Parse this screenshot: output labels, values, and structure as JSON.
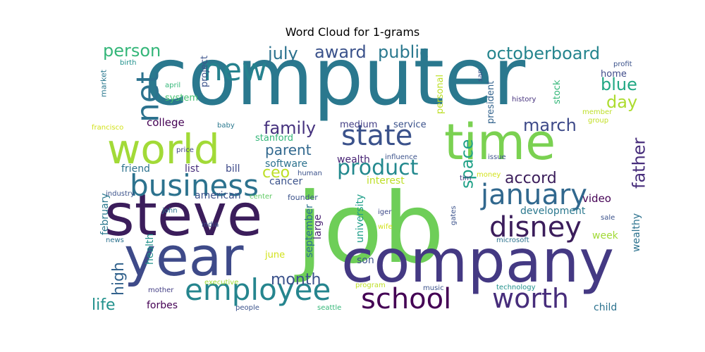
{
  "chart_data": {
    "type": "wordcloud",
    "title": "Word Cloud for 1-grams",
    "colormap": "viridis",
    "words": [
      {
        "text": "computer",
        "weight": 100
      },
      {
        "text": "job",
        "weight": 98
      },
      {
        "text": "company",
        "weight": 72
      },
      {
        "text": "steve",
        "weight": 70
      },
      {
        "text": "year",
        "weight": 62
      },
      {
        "text": "time",
        "weight": 58
      },
      {
        "text": "world",
        "weight": 48
      },
      {
        "text": "business",
        "weight": 34
      },
      {
        "text": "employee",
        "weight": 34
      },
      {
        "text": "state",
        "weight": 32
      },
      {
        "text": "january",
        "weight": 30
      },
      {
        "text": "disney",
        "weight": 30
      },
      {
        "text": "new",
        "weight": 30
      },
      {
        "text": "net",
        "weight": 30
      },
      {
        "text": "school",
        "weight": 28
      },
      {
        "text": "worth",
        "weight": 28
      },
      {
        "text": "product",
        "weight": 22
      },
      {
        "text": "award",
        "weight": 20
      },
      {
        "text": "public",
        "weight": 20
      },
      {
        "text": "octoberboard",
        "weight": 20
      },
      {
        "text": "person",
        "weight": 20
      },
      {
        "text": "july",
        "weight": 20
      },
      {
        "text": "blue",
        "weight": 20
      },
      {
        "text": "day",
        "weight": 20
      },
      {
        "text": "family",
        "weight": 20
      },
      {
        "text": "march",
        "weight": 20
      },
      {
        "text": "accord",
        "weight": 20
      },
      {
        "text": "month",
        "weight": 20
      },
      {
        "text": "father",
        "weight": 20
      },
      {
        "text": "space",
        "weight": 20
      },
      {
        "text": "life",
        "weight": 18
      },
      {
        "text": "high",
        "weight": 18
      },
      {
        "text": "ceo",
        "weight": 18
      },
      {
        "text": "parent",
        "weight": 16
      },
      {
        "text": "college",
        "weight": 14
      },
      {
        "text": "video",
        "weight": 14
      },
      {
        "text": "development",
        "weight": 13
      },
      {
        "text": "university",
        "weight": 13
      },
      {
        "text": "american",
        "weight": 13
      },
      {
        "text": "health",
        "weight": 13
      },
      {
        "text": "wealthy",
        "weight": 13
      },
      {
        "text": "forbes",
        "weight": 13
      },
      {
        "text": "child",
        "weight": 13
      },
      {
        "text": "son",
        "weight": 13
      },
      {
        "text": "february",
        "weight": 13
      },
      {
        "text": "large",
        "weight": 13
      },
      {
        "text": "september",
        "weight": 13
      },
      {
        "text": "week",
        "weight": 13
      },
      {
        "text": "friend",
        "weight": 13
      },
      {
        "text": "list",
        "weight": 13
      },
      {
        "text": "bill",
        "weight": 13
      },
      {
        "text": "software",
        "weight": 13
      },
      {
        "text": "interest",
        "weight": 13
      },
      {
        "text": "cancer",
        "weight": 13
      },
      {
        "text": "wealth",
        "weight": 13
      },
      {
        "text": "medium",
        "weight": 12
      },
      {
        "text": "service",
        "weight": 12
      },
      {
        "text": "stanford",
        "weight": 12
      },
      {
        "text": "system",
        "weight": 12
      },
      {
        "text": "project",
        "weight": 12
      },
      {
        "text": "market",
        "weight": 12
      },
      {
        "text": "personal",
        "weight": 12
      },
      {
        "text": "president",
        "weight": 12
      },
      {
        "text": "stock",
        "weight": 12
      },
      {
        "text": "home",
        "weight": 12
      },
      {
        "text": "june",
        "weight": 12
      },
      {
        "text": "founder",
        "weight": 10
      },
      {
        "text": "birth",
        "weight": 10
      },
      {
        "text": "april",
        "weight": 10
      },
      {
        "text": "baby",
        "weight": 10
      },
      {
        "text": "francisco",
        "weight": 10
      },
      {
        "text": "price",
        "weight": 10
      },
      {
        "text": "industry",
        "weight": 10
      },
      {
        "text": "john",
        "weight": 10
      },
      {
        "text": "india",
        "weight": 10
      },
      {
        "text": "news",
        "weight": 10
      },
      {
        "text": "executive",
        "weight": 10
      },
      {
        "text": "mother",
        "weight": 10
      },
      {
        "text": "people",
        "weight": 10
      },
      {
        "text": "seattle",
        "weight": 10
      },
      {
        "text": "program",
        "weight": 10
      },
      {
        "text": "music",
        "weight": 10
      },
      {
        "text": "technology",
        "weight": 10
      },
      {
        "text": "microsoft",
        "weight": 10
      },
      {
        "text": "wife",
        "weight": 10
      },
      {
        "text": "iger",
        "weight": 10
      },
      {
        "text": "gates",
        "weight": 10
      },
      {
        "text": "tim",
        "weight": 10
      },
      {
        "text": "money",
        "weight": 10
      },
      {
        "text": "issue",
        "weight": 10
      },
      {
        "text": "human",
        "weight": 10
      },
      {
        "text": "center",
        "weight": 10
      },
      {
        "text": "influence",
        "weight": 10
      },
      {
        "text": "san",
        "weight": 10
      },
      {
        "text": "history",
        "weight": 10
      },
      {
        "text": "member",
        "weight": 10
      },
      {
        "text": "group",
        "weight": 10
      },
      {
        "text": "sale",
        "weight": 10
      },
      {
        "text": "profit",
        "weight": 10
      }
    ]
  }
}
